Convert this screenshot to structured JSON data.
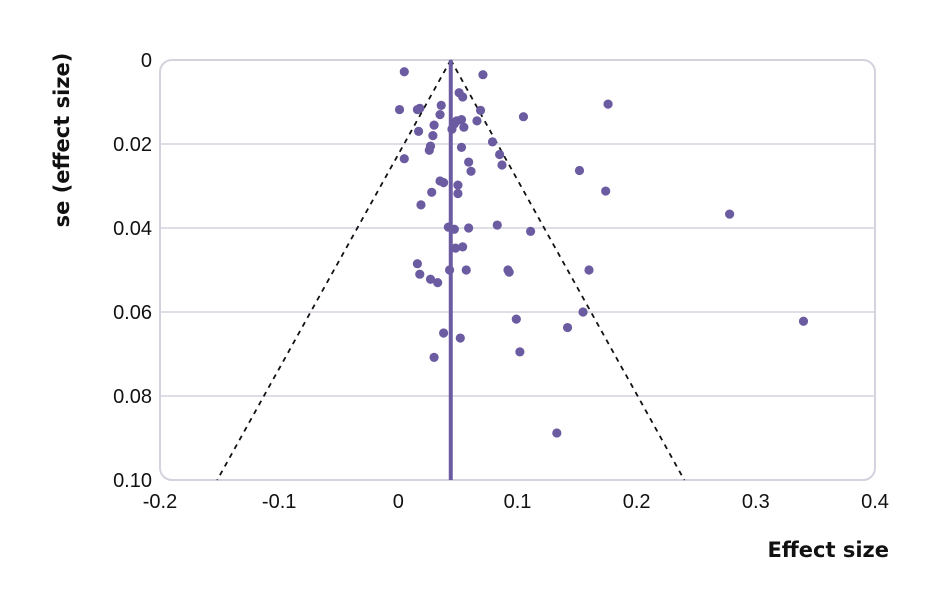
{
  "chart_data": {
    "type": "scatter",
    "chart_kind": "funnel plot",
    "xlabel": "Effect size",
    "ylabel": "se (effect size)",
    "x_axis": {
      "min": -0.2,
      "max": 0.4,
      "ticks": [
        -0.2,
        -0.1,
        0,
        0.1,
        0.2,
        0.3,
        0.4
      ],
      "tick_labels": [
        "-0.2",
        "-0.1",
        "0",
        "0.1",
        "0.2",
        "0.3",
        "0.4"
      ]
    },
    "y_axis": {
      "min": 0,
      "max": 0.1,
      "reversed": true,
      "ticks": [
        0,
        0.02,
        0.04,
        0.06,
        0.08,
        0.1
      ],
      "tick_labels": [
        "0",
        "0.02",
        "0.04",
        "0.06",
        "0.08",
        "0.10"
      ]
    },
    "grid": "horizontal",
    "pooled_effect": 0.044,
    "funnel_boundary": [
      {
        "name": "lower",
        "points": [
          [
            0.044,
            0
          ],
          [
            -0.152,
            0.1
          ]
        ]
      },
      {
        "name": "upper",
        "points": [
          [
            0.044,
            0
          ],
          [
            0.24,
            0.1
          ]
        ]
      }
    ],
    "colors": {
      "points": "#6b5ba1",
      "pooled_line": "#6b5ba1",
      "boundary": "#111111",
      "grid": "#d3d3de",
      "frame": "#d3d3de"
    },
    "points": [
      {
        "x": 0.005,
        "y": 0.0028
      },
      {
        "x": 0.071,
        "y": 0.0035
      },
      {
        "x": 0.051,
        "y": 0.0078
      },
      {
        "x": 0.054,
        "y": 0.0088
      },
      {
        "x": 0.176,
        "y": 0.0105
      },
      {
        "x": 0.036,
        "y": 0.0108
      },
      {
        "x": 0.018,
        "y": 0.0115
      },
      {
        "x": 0.001,
        "y": 0.0118
      },
      {
        "x": 0.016,
        "y": 0.0118
      },
      {
        "x": 0.069,
        "y": 0.012
      },
      {
        "x": 0.035,
        "y": 0.013
      },
      {
        "x": 0.105,
        "y": 0.0135
      },
      {
        "x": 0.053,
        "y": 0.0142
      },
      {
        "x": 0.049,
        "y": 0.0145
      },
      {
        "x": 0.066,
        "y": 0.0145
      },
      {
        "x": 0.047,
        "y": 0.0152
      },
      {
        "x": 0.03,
        "y": 0.0155
      },
      {
        "x": 0.055,
        "y": 0.016
      },
      {
        "x": 0.045,
        "y": 0.0165
      },
      {
        "x": 0.017,
        "y": 0.017
      },
      {
        "x": 0.029,
        "y": 0.018
      },
      {
        "x": 0.079,
        "y": 0.0195
      },
      {
        "x": 0.027,
        "y": 0.0205
      },
      {
        "x": 0.053,
        "y": 0.0208
      },
      {
        "x": 0.026,
        "y": 0.0215
      },
      {
        "x": 0.085,
        "y": 0.0225
      },
      {
        "x": 0.005,
        "y": 0.0235
      },
      {
        "x": 0.059,
        "y": 0.0243
      },
      {
        "x": 0.087,
        "y": 0.025
      },
      {
        "x": 0.061,
        "y": 0.0265
      },
      {
        "x": 0.152,
        "y": 0.0263
      },
      {
        "x": 0.035,
        "y": 0.0288
      },
      {
        "x": 0.038,
        "y": 0.0292
      },
      {
        "x": 0.05,
        "y": 0.0298
      },
      {
        "x": 0.174,
        "y": 0.0312
      },
      {
        "x": 0.028,
        "y": 0.0315
      },
      {
        "x": 0.05,
        "y": 0.0318
      },
      {
        "x": 0.019,
        "y": 0.0345
      },
      {
        "x": 0.278,
        "y": 0.0367
      },
      {
        "x": 0.083,
        "y": 0.0393
      },
      {
        "x": 0.042,
        "y": 0.0398
      },
      {
        "x": 0.047,
        "y": 0.0403
      },
      {
        "x": 0.059,
        "y": 0.04
      },
      {
        "x": 0.111,
        "y": 0.0408
      },
      {
        "x": 0.054,
        "y": 0.0445
      },
      {
        "x": 0.048,
        "y": 0.0448
      },
      {
        "x": 0.016,
        "y": 0.0485
      },
      {
        "x": 0.043,
        "y": 0.05
      },
      {
        "x": 0.057,
        "y": 0.05
      },
      {
        "x": 0.092,
        "y": 0.05
      },
      {
        "x": 0.16,
        "y": 0.05
      },
      {
        "x": 0.093,
        "y": 0.0505
      },
      {
        "x": 0.018,
        "y": 0.051
      },
      {
        "x": 0.027,
        "y": 0.0522
      },
      {
        "x": 0.033,
        "y": 0.053
      },
      {
        "x": 0.155,
        "y": 0.06
      },
      {
        "x": 0.099,
        "y": 0.0617
      },
      {
        "x": 0.34,
        "y": 0.0622
      },
      {
        "x": 0.142,
        "y": 0.0637
      },
      {
        "x": 0.038,
        "y": 0.065
      },
      {
        "x": 0.052,
        "y": 0.0662
      },
      {
        "x": 0.102,
        "y": 0.0695
      },
      {
        "x": 0.03,
        "y": 0.0708
      },
      {
        "x": 0.133,
        "y": 0.0888
      }
    ]
  }
}
